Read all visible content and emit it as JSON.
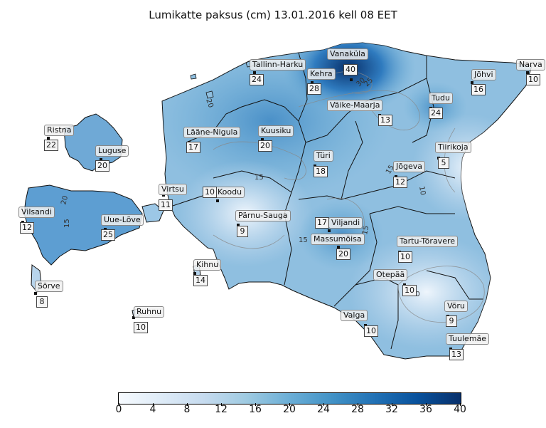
{
  "title": "Lumikatte paksus (cm) 13.01.2016 kell 08 EET",
  "stations": [
    {
      "name": "Vanaküla",
      "value": "40"
    },
    {
      "name": "Narva",
      "value": "10"
    },
    {
      "name": "Tallinn-Harku",
      "value": "24"
    },
    {
      "name": "Kehra",
      "value": "28"
    },
    {
      "name": "Jõhvi",
      "value": "16"
    },
    {
      "name": "Tudu",
      "value": "24"
    },
    {
      "name": "Väike-Maarja",
      "value": "13"
    },
    {
      "name": "Ristna",
      "value": "22"
    },
    {
      "name": "Lääne-Nigula",
      "value": "17"
    },
    {
      "name": "Kuusiku",
      "value": "20"
    },
    {
      "name": "Luguse",
      "value": "20"
    },
    {
      "name": "Türi",
      "value": "18"
    },
    {
      "name": "Tiirikoja",
      "value": "5"
    },
    {
      "name": "Jõgeva",
      "value": "12"
    },
    {
      "name": "Virtsu",
      "value": "11"
    },
    {
      "name": "Koodu",
      "value": "10"
    },
    {
      "name": "Vilsandi",
      "value": "12"
    },
    {
      "name": "Uue-Lõve",
      "value": "25"
    },
    {
      "name": "Pärnu-Sauga",
      "value": "9"
    },
    {
      "name": "Viljandi",
      "value": "17"
    },
    {
      "name": "Massumõisa",
      "value": "20"
    },
    {
      "name": "Tartu-Tõravere",
      "value": "10"
    },
    {
      "name": "Kihnu",
      "value": "14"
    },
    {
      "name": "Otepää",
      "value": "10"
    },
    {
      "name": "Sõrve",
      "value": "8"
    },
    {
      "name": "Ruhnu",
      "value": "10"
    },
    {
      "name": "Valga",
      "value": "10"
    },
    {
      "name": "Võru",
      "value": "9"
    },
    {
      "name": "Tuulemäe",
      "value": "13"
    }
  ],
  "contour_labels": [
    "25",
    "30",
    "20",
    "15",
    "15",
    "10",
    "20",
    "15",
    "15",
    "15",
    "10"
  ],
  "colorbar": {
    "ticks": [
      "0",
      "4",
      "8",
      "12",
      "16",
      "20",
      "24",
      "28",
      "32",
      "36",
      "40"
    ],
    "min": 0,
    "max": 40,
    "colors": [
      "#f7fbff",
      "#deebf7",
      "#c6dbef",
      "#9ecae1",
      "#6baed6",
      "#4292c6",
      "#2171b5",
      "#08519c",
      "#08306b"
    ]
  }
}
